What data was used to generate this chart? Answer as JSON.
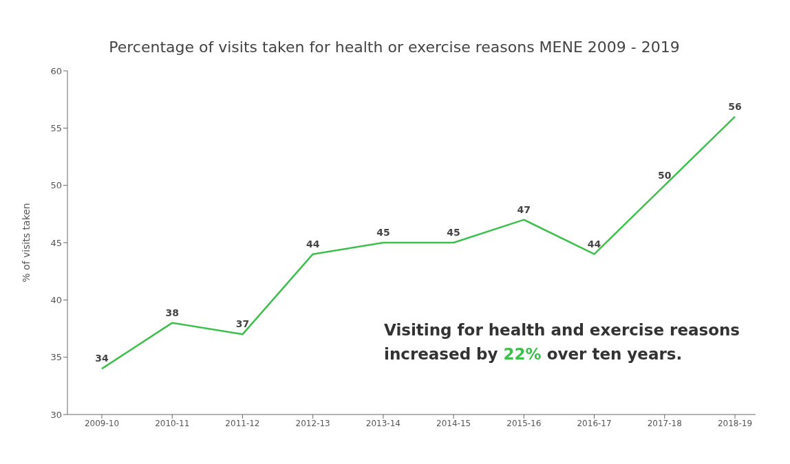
{
  "chart_data": {
    "type": "line",
    "title": "Percentage of visits taken for health or exercise reasons MENE 2009 - 2019",
    "ylabel": "% of visits taken",
    "categories": [
      "2009-10",
      "2010-11",
      "2011-12",
      "2012-13",
      "2013-14",
      "2014-15",
      "2015-16",
      "2016-17",
      "2017-18",
      "2018-19"
    ],
    "series": [
      {
        "color": "#3dbf4b",
        "values": [
          34,
          38,
          37,
          44,
          45,
          45,
          47,
          44,
          50,
          56
        ]
      }
    ],
    "ylim": [
      30,
      60
    ],
    "yticks": [
      30,
      35,
      40,
      45,
      50,
      55,
      60
    ],
    "grid": false,
    "legend": false,
    "marker": "none",
    "line_style": "solid",
    "data_labels": true,
    "annotations": [
      "Visiting for health and exercise reasons increased by 22% over ten years."
    ]
  }
}
